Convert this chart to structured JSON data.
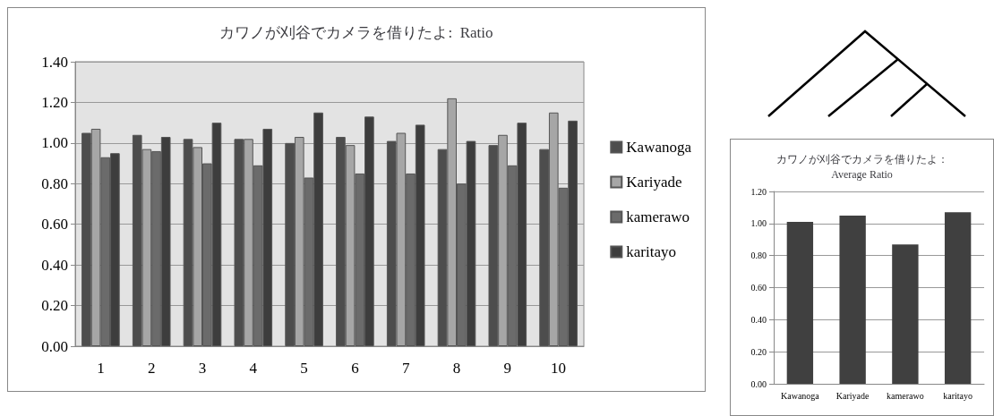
{
  "chart_data": [
    {
      "type": "bar",
      "title": "カワノが刈谷でカメラを借りたよ:  Ratio",
      "categories": [
        "1",
        "2",
        "3",
        "4",
        "5",
        "6",
        "7",
        "8",
        "9",
        "10"
      ],
      "series": [
        {
          "name": "Kawanoga",
          "color": "#4d4d4d",
          "values": [
            1.05,
            1.04,
            1.02,
            1.02,
            1.0,
            1.03,
            1.01,
            0.97,
            0.99,
            0.97
          ]
        },
        {
          "name": "Kariyade",
          "color": "#a6a6a6",
          "values": [
            1.07,
            0.97,
            0.98,
            1.02,
            1.03,
            0.99,
            1.05,
            1.22,
            1.04,
            1.15
          ]
        },
        {
          "name": "kamerawo",
          "color": "#6b6b6b",
          "values": [
            0.93,
            0.96,
            0.9,
            0.89,
            0.83,
            0.85,
            0.85,
            0.8,
            0.89,
            0.78
          ]
        },
        {
          "name": "karitayo",
          "color": "#3d3d3d",
          "values": [
            0.95,
            1.03,
            1.1,
            1.07,
            1.15,
            1.13,
            1.09,
            1.01,
            1.1,
            1.11
          ]
        }
      ],
      "ylim": [
        0,
        1.4
      ],
      "yticks": [
        {
          "value": 0,
          "label": "0.00"
        },
        {
          "value": 0.2,
          "label": "0.20"
        },
        {
          "value": 0.4,
          "label": "0.40"
        },
        {
          "value": 0.6,
          "label": "0.60"
        },
        {
          "value": 0.8,
          "label": "0.80"
        },
        {
          "value": 1.0,
          "label": "1.00"
        },
        {
          "value": 1.2,
          "label": "1.20"
        },
        {
          "value": 1.4,
          "label": "1.40"
        }
      ],
      "grid": "y",
      "legend": "right"
    },
    {
      "type": "bar",
      "title": "カワノが刈谷でカメラを借りたよ：\nAverage Ratio",
      "categories": [
        "Kawanoga",
        "Kariyade",
        "kamerawo",
        "karitayo"
      ],
      "values": [
        1.01,
        1.05,
        0.87,
        1.07
      ],
      "color": "#404040",
      "ylim": [
        0,
        1.2
      ],
      "yticks": [
        {
          "value": 0,
          "label": "0.00"
        },
        {
          "value": 0.2,
          "label": "0.20"
        },
        {
          "value": 0.4,
          "label": "0.40"
        },
        {
          "value": 0.6,
          "label": "0.60"
        },
        {
          "value": 0.8,
          "label": "0.80"
        },
        {
          "value": 1.0,
          "label": "1.00"
        },
        {
          "value": 1.2,
          "label": "1.20"
        }
      ],
      "grid": "y"
    }
  ]
}
